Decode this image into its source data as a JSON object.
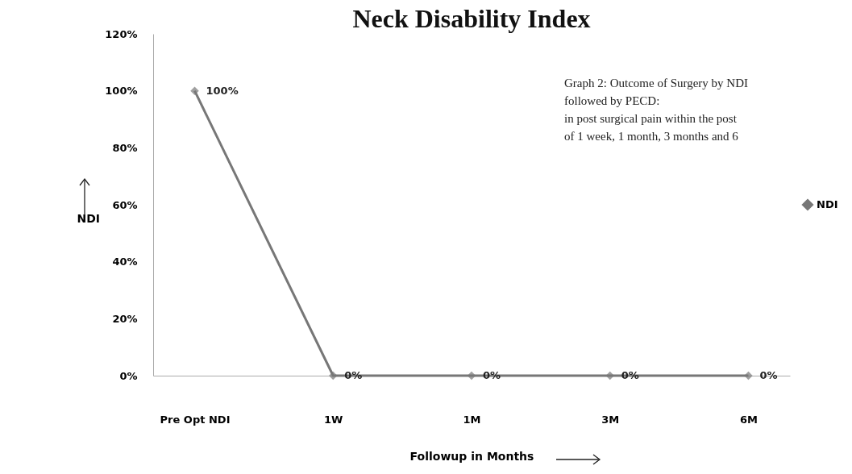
{
  "chart_data": {
    "type": "line",
    "title": "Neck Disability Index",
    "xlabel": "Followup in Months",
    "ylabel": "NDI",
    "categories": [
      "Pre Opt NDI",
      "1W",
      "1M",
      "3M",
      "6M"
    ],
    "series": [
      {
        "name": "NDI",
        "color": "#777777",
        "values": [
          100,
          0,
          0,
          0,
          0
        ],
        "value_labels": [
          "100%",
          "0%",
          "0%",
          "0%",
          "0%"
        ]
      }
    ],
    "ylim": [
      0,
      120
    ],
    "yticks": [
      {
        "value": 0,
        "label": "0%"
      },
      {
        "value": 20,
        "label": "20%"
      },
      {
        "value": 40,
        "label": "40%"
      },
      {
        "value": 60,
        "label": "60%"
      },
      {
        "value": 80,
        "label": "80%"
      },
      {
        "value": 100,
        "label": "100%"
      },
      {
        "value": 120,
        "label": "120%"
      }
    ],
    "annotations": [
      "Graph 2: Outcome of Surgery by NDI",
      "followed by PECD:",
      "in post surgical pain within the post",
      "of 1 week, 1 month, 3 months and 6"
    ],
    "grid": false,
    "legend": "right",
    "marker": "diamond",
    "line_style": "solid"
  }
}
